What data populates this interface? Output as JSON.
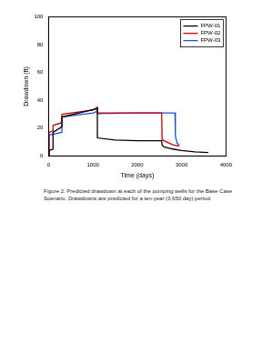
{
  "chart_data": {
    "type": "line",
    "caption": "Figure 2.  Predicted drawdown at each of the pumping wells for the Base Case Scenario.  Drawdowns are predicted for a ten-year (3,650 day) period.",
    "x_label": "Time (days)",
    "y_label": "Drawdown (ft)",
    "xlim": [
      0,
      4000
    ],
    "xticks": [
      0,
      1000,
      2000,
      3000,
      4000
    ],
    "ylim": [
      0,
      100
    ],
    "yticks": [
      0,
      20,
      40,
      60,
      80,
      100
    ],
    "grid": false,
    "legend": "upper right",
    "series": [
      {
        "name": "FPW-01",
        "color": "#000000",
        "line_style": "solid",
        "x": [
          0,
          10,
          100,
          100,
          300,
          300,
          1095,
          1100,
          1100,
          1500,
          2000,
          2550,
          2560,
          2600,
          2800,
          3000,
          3300,
          3600
        ],
        "values": [
          0,
          4,
          5,
          17,
          21,
          28,
          34,
          35,
          13,
          11.5,
          11,
          11,
          8,
          6.5,
          5,
          4,
          3,
          2.5
        ]
      },
      {
        "name": "FPW-02",
        "color": "#cc0000",
        "line_style": "solid",
        "x": [
          0,
          10,
          100,
          100,
          300,
          300,
          1000,
          1095,
          1100,
          1100,
          2000,
          2550,
          2560,
          2600,
          2800,
          2950
        ],
        "values": [
          0,
          17,
          18,
          22,
          24,
          30,
          33,
          35,
          35,
          31,
          31,
          31,
          12,
          11,
          8,
          7
        ]
      },
      {
        "name": "FPW-03",
        "color": "#1f4fd8",
        "line_style": "solid",
        "x": [
          0,
          10,
          300,
          300,
          1000,
          1095,
          1100,
          1100,
          2000,
          2850,
          2860,
          2900,
          2950
        ],
        "values": [
          0,
          15,
          17,
          28,
          31,
          32,
          32,
          30.5,
          31,
          31,
          14,
          9,
          8
        ]
      }
    ]
  }
}
